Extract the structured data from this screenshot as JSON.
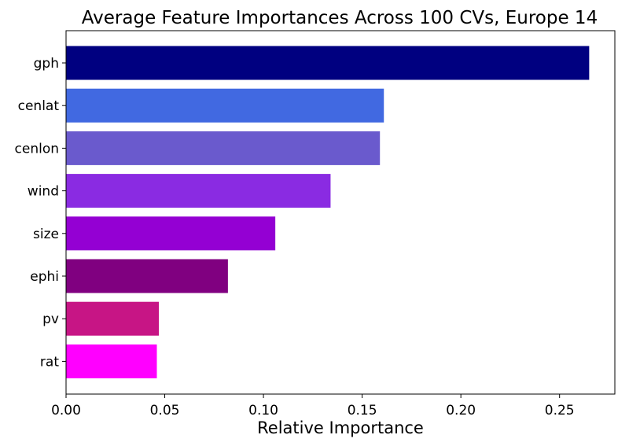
{
  "chart_data": {
    "type": "bar",
    "orientation": "horizontal",
    "title": "Average Feature Importances Across 100 CVs, Europe 14",
    "xlabel": "Relative Importance",
    "ylabel": "",
    "categories": [
      "gph",
      "cenlat",
      "cenlon",
      "wind",
      "size",
      "ephi",
      "pv",
      "rat"
    ],
    "values": [
      0.265,
      0.161,
      0.159,
      0.134,
      0.106,
      0.082,
      0.047,
      0.046
    ],
    "colors": [
      "#000080",
      "#4169e1",
      "#6a5acd",
      "#8a2be2",
      "#9400d3",
      "#800080",
      "#c71585",
      "#ff00ff"
    ],
    "xlim": [
      0,
      0.278
    ],
    "xticks": [
      0.0,
      0.05,
      0.1,
      0.15,
      0.2,
      0.25
    ],
    "xtick_labels": [
      "0.00",
      "0.05",
      "0.10",
      "0.15",
      "0.20",
      "0.25"
    ],
    "grid": false,
    "legend": "none"
  }
}
